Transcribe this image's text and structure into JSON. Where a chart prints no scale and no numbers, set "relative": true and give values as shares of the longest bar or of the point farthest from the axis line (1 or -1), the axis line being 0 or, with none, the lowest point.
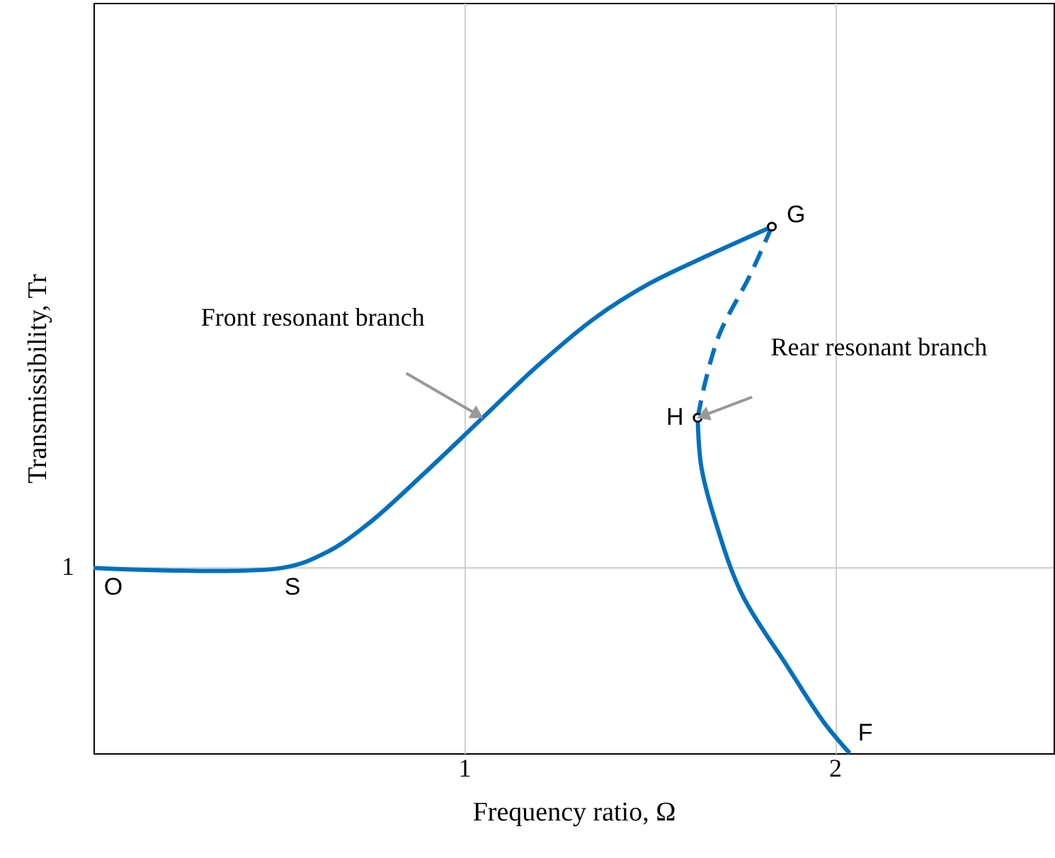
{
  "chart_data": {
    "type": "line",
    "xlabel": "Frequency ratio, Ω",
    "ylabel": "Transmissibility, Tr",
    "relative": true,
    "xlim": [
      0,
      2.59
    ],
    "xticks": [
      {
        "value": 1,
        "label": "1"
      },
      {
        "value": 2,
        "label": "2"
      }
    ],
    "grid": "x",
    "series": [
      {
        "color": "#0070c0",
        "line_style": "solid",
        "x": [
          0,
          0.51,
          0.63,
          0.74,
          0.89,
          1.05,
          1.2,
          1.35,
          1.5,
          1.66,
          1.83
        ],
        "values": [
          0.352,
          0.352,
          0.382,
          0.435,
          0.53,
          0.637,
          0.737,
          0.825,
          0.892,
          0.946,
          1.0
        ]
      },
      {
        "color": "#0070c0",
        "line_style": "dashed",
        "x": [
          1.83,
          1.77,
          1.69,
          1.65,
          1.63
        ],
        "values": [
          1.0,
          0.906,
          0.798,
          0.704,
          0.637
        ]
      },
      {
        "color": "#0070c0",
        "line_style": "solid",
        "x": [
          1.63,
          1.64,
          1.68,
          1.75,
          1.87,
          1.97,
          2.04
        ],
        "values": [
          0.637,
          0.543,
          0.435,
          0.301,
          0.167,
          0.059,
          0.0
        ]
      },
      {
        "type": "scatter",
        "color": "#000000",
        "marker": "circle",
        "x": [
          1.83,
          1.63
        ],
        "values": [
          1.0,
          0.637
        ]
      }
    ],
    "ref_lines": [
      {
        "axis": "y",
        "value": 0.352,
        "color": "#cccccc"
      }
    ],
    "annotations": [
      {
        "text": "O",
        "x": 0,
        "y": 0.352
      },
      {
        "text": "S",
        "x": 0.51,
        "y": 0.352
      },
      {
        "text": "G",
        "x": 1.83,
        "y": 1.0
      },
      {
        "text": "H",
        "x": 1.63,
        "y": 0.637
      },
      {
        "text": "F",
        "x": 2.04,
        "y": 0.0
      },
      "Front resonant branch",
      "Rear resonant branch",
      "1"
    ]
  }
}
